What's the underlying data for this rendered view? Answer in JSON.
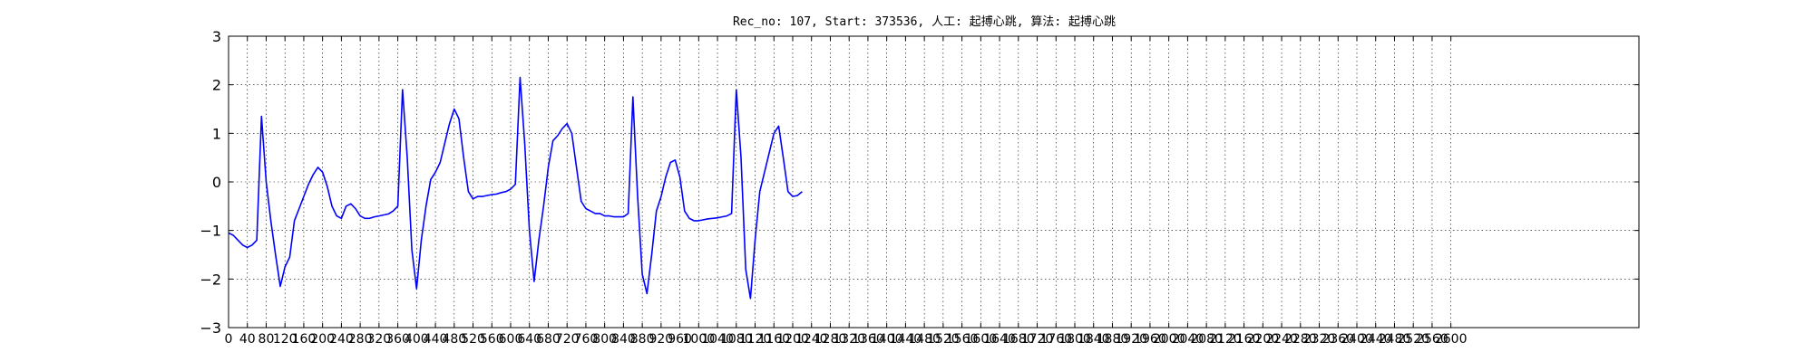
{
  "chart_data": {
    "type": "line",
    "title": "Rec_no: 107, Start: 373536, 人工: 起搏心跳, 算法: 起搏心跳",
    "xlabel": "",
    "ylabel": "",
    "xlim": [
      0,
      3000
    ],
    "ylim": [
      -3,
      3
    ],
    "grid": true,
    "xticks": [
      0,
      40,
      80,
      120,
      160,
      200,
      240,
      280,
      320,
      360,
      400,
      440,
      480,
      520,
      560,
      600,
      640,
      680,
      720,
      760,
      800,
      840,
      880,
      920,
      960,
      1000,
      1040,
      1080,
      1120,
      1160,
      1200,
      1240,
      1280,
      1320,
      1360,
      1400,
      1440,
      1480,
      1520,
      1560,
      1600,
      1640,
      1680,
      1720,
      1760,
      1800,
      1840,
      1880,
      1920,
      1960,
      2000,
      2040,
      2080,
      2120,
      2160,
      2200,
      2240,
      2280,
      2320,
      2360,
      2400,
      2440,
      2480,
      2520,
      2560,
      2600
    ],
    "yticks": [
      -3,
      -2,
      -1,
      0,
      1,
      2,
      3
    ],
    "colors": {
      "normal": "#0000ff",
      "highlight": "#ff0000"
    },
    "series": [
      {
        "color": "#0000ff",
        "x": [
          0,
          10,
          20,
          30,
          40,
          50,
          60,
          70,
          80,
          90,
          100,
          110,
          120,
          130,
          140,
          150,
          160,
          170,
          180,
          190,
          200,
          210,
          220,
          230,
          240,
          250,
          260,
          270,
          280,
          290,
          300,
          310,
          320,
          330,
          340,
          350,
          360,
          370,
          380,
          390,
          400,
          410,
          420,
          430,
          440,
          450,
          460,
          470,
          480,
          490,
          500,
          510,
          520,
          530,
          540,
          550,
          560,
          570,
          580,
          590,
          600,
          610,
          620,
          630,
          640,
          650,
          660,
          670,
          680,
          690,
          700,
          710,
          720,
          730,
          740,
          750,
          760,
          770,
          780,
          790,
          800,
          810,
          820,
          830,
          840,
          850,
          860,
          870,
          880,
          890,
          900,
          910,
          920,
          930,
          940,
          950,
          960,
          970,
          980,
          990,
          1000,
          1010,
          1020,
          1030,
          1040,
          1050,
          1060,
          1070,
          1080,
          1090,
          1100,
          1110,
          1120,
          1130,
          1140,
          1150,
          1160,
          1170,
          1180,
          1190,
          1200,
          1210,
          1220
        ],
        "y": [
          -1.05,
          -1.1,
          -1.2,
          -1.3,
          -1.35,
          -1.3,
          -1.2,
          1.35,
          0.0,
          -0.8,
          -1.5,
          -2.15,
          -1.75,
          -1.55,
          -0.8,
          -0.55,
          -0.3,
          -0.05,
          0.15,
          0.3,
          0.2,
          -0.1,
          -0.5,
          -0.7,
          -0.75,
          -0.5,
          -0.45,
          -0.55,
          -0.7,
          -0.75,
          -0.75,
          -0.72,
          -0.7,
          -0.68,
          -0.66,
          -0.6,
          -0.5,
          1.9,
          0.5,
          -1.4,
          -2.2,
          -1.2,
          -0.5,
          0.05,
          0.2,
          0.4,
          0.8,
          1.2,
          1.5,
          1.3,
          0.5,
          -0.2,
          -0.35,
          -0.3,
          -0.3,
          -0.28,
          -0.26,
          -0.25,
          -0.22,
          -0.2,
          -0.15,
          -0.05,
          2.15,
          0.8,
          -1.0,
          -2.05,
          -1.2,
          -0.5,
          0.3,
          0.85,
          0.95,
          1.1,
          1.2,
          1.0,
          0.3,
          -0.4,
          -0.55,
          -0.6,
          -0.65,
          -0.65,
          -0.7,
          -0.7,
          -0.72,
          -0.72,
          -0.72,
          -0.65,
          1.75,
          -0.3,
          -1.9,
          -2.3,
          -1.5,
          -0.6,
          -0.3,
          0.1,
          0.4,
          0.45,
          0.1,
          -0.6,
          -0.75,
          -0.8,
          -0.8,
          -0.78,
          -0.76,
          -0.75,
          -0.74,
          -0.72,
          -0.7,
          -0.65,
          1.9,
          0.5,
          -1.8,
          -2.4,
          -1.2,
          -0.2,
          0.2,
          0.6,
          1.0,
          1.15,
          0.5,
          -0.2,
          -0.3,
          -0.28,
          -0.2
        ]
      }
    ]
  }
}
